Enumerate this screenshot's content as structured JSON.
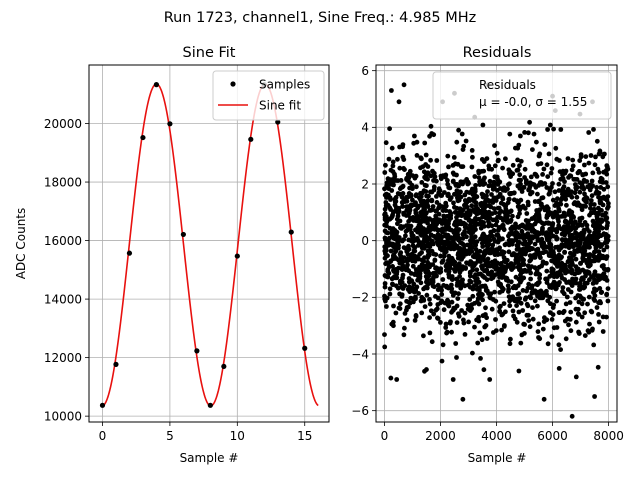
{
  "suptitle": "Run 1723, channel1, Sine Freq.: 4.985 MHz",
  "chart_data": [
    {
      "type": "line",
      "title": "Sine Fit",
      "xlabel": "Sample #",
      "ylabel": "ADC Counts",
      "xlim": [
        -1,
        16.8
      ],
      "ylim": [
        9800,
        22000
      ],
      "xticks": [
        0,
        5,
        10,
        15
      ],
      "yticks": [
        10000,
        12000,
        14000,
        16000,
        18000,
        20000
      ],
      "grid": true,
      "legend_location": "top-right",
      "legend": [
        "Samples",
        "Sine fit"
      ],
      "colors": {
        "samples": "#000000",
        "fit": "#e8110f"
      },
      "fit": {
        "amplitude": 5500,
        "offset": 15850,
        "period": 8.06,
        "phase_peak_at": 4.0,
        "x_range": [
          0,
          16
        ]
      },
      "samples": {
        "x": [
          0,
          1,
          2,
          3,
          4,
          5,
          6,
          7,
          8,
          9,
          10,
          11,
          12,
          13,
          14,
          15
        ],
        "y": [
          10370,
          11770,
          15570,
          19520,
          21330,
          19990,
          16210,
          12230,
          10370,
          11700,
          15470,
          19460,
          21330,
          20050,
          16290,
          12320
        ]
      }
    },
    {
      "type": "scatter",
      "title": "Residuals",
      "xlabel": "Sample #",
      "xlim": [
        -300,
        8300
      ],
      "ylim": [
        -6.4,
        6.2
      ],
      "xticks": [
        0,
        2000,
        4000,
        6000,
        8000
      ],
      "yticks": [
        -6,
        -4,
        -2,
        0,
        2,
        4,
        6
      ],
      "grid": true,
      "legend_location": "top-right",
      "legend": [
        "Residuals",
        "μ = -0.0, σ = 1.55"
      ],
      "stats": {
        "mean": -0.0,
        "sigma": 1.55,
        "n_points": 8000,
        "x_range": [
          0,
          7999
        ]
      },
      "outliers": [
        {
          "x": 700,
          "y": 5.5
        },
        {
          "x": 250,
          "y": 5.3
        },
        {
          "x": 2500,
          "y": 5.2
        },
        {
          "x": 3700,
          "y": 5.5
        },
        {
          "x": 6000,
          "y": 5.1
        },
        {
          "x": 2800,
          "y": -5.6
        },
        {
          "x": 5700,
          "y": -5.6
        },
        {
          "x": 6700,
          "y": -6.2
        },
        {
          "x": 7500,
          "y": -5.5
        },
        {
          "x": 230,
          "y": -4.85
        },
        {
          "x": 1500,
          "y": -4.55
        },
        {
          "x": 4800,
          "y": -4.6
        }
      ],
      "colors": {
        "points": "#000000"
      }
    }
  ]
}
